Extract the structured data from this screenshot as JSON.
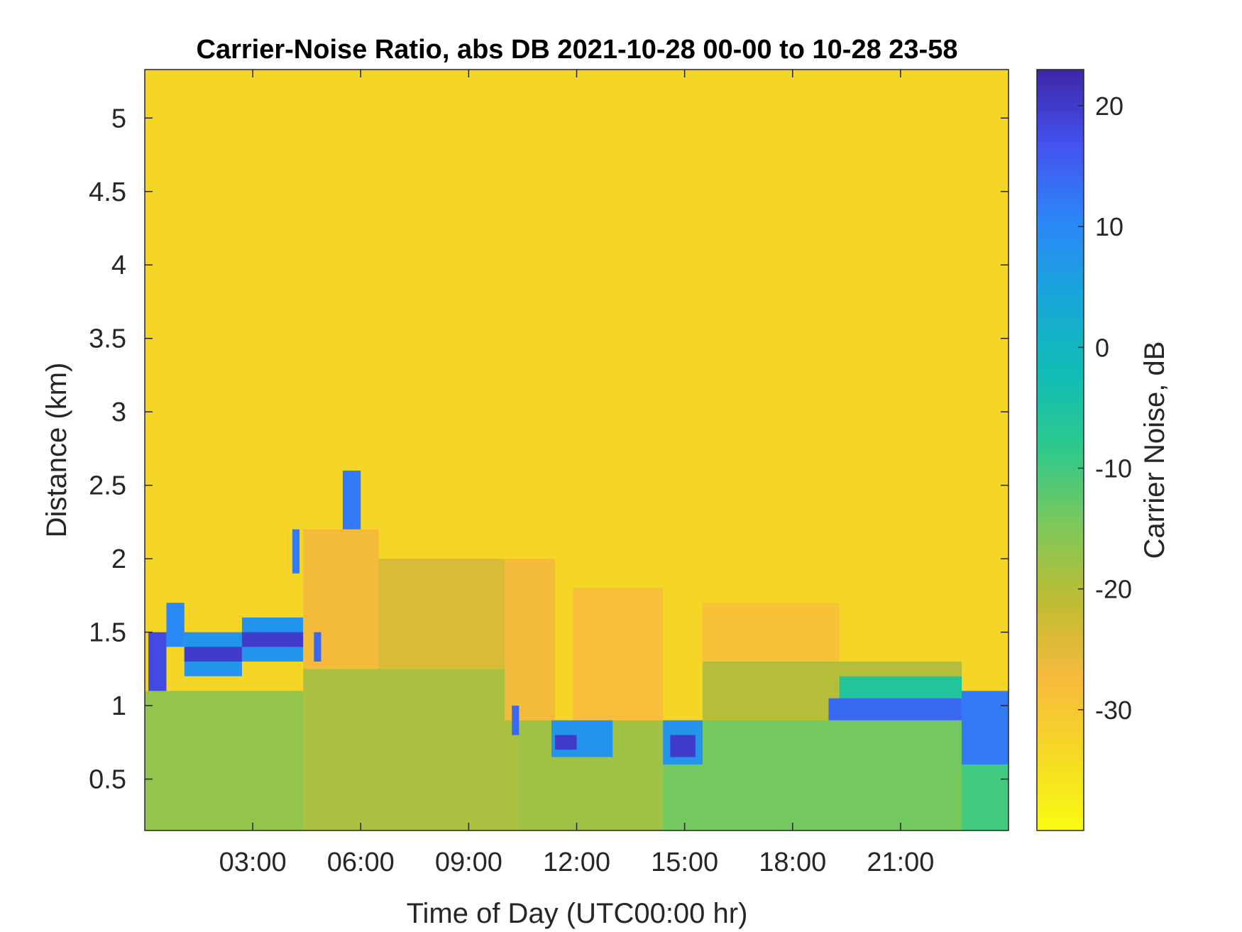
{
  "chart_data": {
    "type": "heatmap",
    "title": "Carrier-Noise Ratio, abs DB 2021-10-28 00-00 to 10-28 23-58",
    "xlabel": "Time of Day (UTC00:00 hr)",
    "ylabel": "Distance (km)",
    "colorbar_label": "Carrier Noise, dB",
    "colormap": "parula-reversed",
    "colormap_stops": [
      "#3e26a8",
      "#4353f0",
      "#2c87f8",
      "#17a7d9",
      "#10bdb5",
      "#2ec98b",
      "#7ec85a",
      "#bfbc33",
      "#f8ba3d",
      "#f5d924",
      "#f9fb14"
    ],
    "xlim": [
      0,
      24
    ],
    "ylim": [
      0.15,
      5.33
    ],
    "clim": [
      -40,
      23
    ],
    "x_ticks": [
      3,
      6,
      9,
      12,
      15,
      18,
      21
    ],
    "x_tick_labels": [
      "03:00",
      "06:00",
      "09:00",
      "12:00",
      "15:00",
      "18:00",
      "21:00"
    ],
    "y_ticks": [
      0.5,
      1,
      1.5,
      2,
      2.5,
      3,
      3.5,
      4,
      4.5,
      5
    ],
    "y_tick_labels": [
      "0.5",
      "1",
      "1.5",
      "2",
      "2.5",
      "3",
      "3.5",
      "4",
      "4.5",
      "5"
    ],
    "c_ticks": [
      -30,
      -20,
      -10,
      0,
      10,
      20
    ],
    "c_tick_labels": [
      "-30",
      "-20",
      "-10",
      "0",
      "10",
      "20"
    ],
    "background_value": -33,
    "layers": [
      {
        "t": [
          0,
          4.4
        ],
        "z": [
          0.15,
          1.1
        ],
        "v": -17
      },
      {
        "t": [
          4.4,
          10.4
        ],
        "z": [
          0.15,
          1.25
        ],
        "v": -19
      },
      {
        "t": [
          10.4,
          14.4
        ],
        "z": [
          0.15,
          0.9
        ],
        "v": -18
      },
      {
        "t": [
          14.4,
          22.7
        ],
        "z": [
          0.15,
          0.9
        ],
        "v": -14
      },
      {
        "t": [
          22.7,
          24
        ],
        "z": [
          0.15,
          1.0
        ],
        "v": -10
      },
      {
        "t": [
          4.4,
          6.5
        ],
        "z": [
          1.25,
          2.2
        ],
        "v": -27
      },
      {
        "t": [
          6.5,
          10.0
        ],
        "z": [
          1.25,
          2.0
        ],
        "v": -24
      },
      {
        "t": [
          10.0,
          11.4
        ],
        "z": [
          0.9,
          2.0
        ],
        "v": -27
      },
      {
        "t": [
          11.9,
          14.4
        ],
        "z": [
          0.9,
          1.8
        ],
        "v": -28
      },
      {
        "t": [
          15.5,
          19.3
        ],
        "z": [
          0.9,
          1.7
        ],
        "v": -29
      },
      {
        "t": [
          15.5,
          22.7
        ],
        "z": [
          0.9,
          1.3
        ],
        "v": -20
      },
      {
        "t": [
          19.3,
          22.7
        ],
        "z": [
          1.0,
          1.2
        ],
        "v": -6
      },
      {
        "t": [
          0.1,
          0.6
        ],
        "z": [
          1.1,
          1.5
        ],
        "v": 18
      },
      {
        "t": [
          0.6,
          1.1
        ],
        "z": [
          1.4,
          1.7
        ],
        "v": 10
      },
      {
        "t": [
          1.1,
          2.7
        ],
        "z": [
          1.2,
          1.5
        ],
        "v": 8
      },
      {
        "t": [
          1.1,
          2.7
        ],
        "z": [
          1.3,
          1.4
        ],
        "v": 20
      },
      {
        "t": [
          2.7,
          4.4
        ],
        "z": [
          1.3,
          1.6
        ],
        "v": 8
      },
      {
        "t": [
          2.7,
          4.4
        ],
        "z": [
          1.4,
          1.5
        ],
        "v": 20
      },
      {
        "t": [
          4.1,
          4.3
        ],
        "z": [
          1.9,
          2.2
        ],
        "v": 12
      },
      {
        "t": [
          4.7,
          4.9
        ],
        "z": [
          1.3,
          1.5
        ],
        "v": 14
      },
      {
        "t": [
          5.5,
          6.0
        ],
        "z": [
          2.2,
          2.6
        ],
        "v": 12
      },
      {
        "t": [
          10.2,
          10.4
        ],
        "z": [
          0.8,
          1.0
        ],
        "v": 14
      },
      {
        "t": [
          11.3,
          13.0
        ],
        "z": [
          0.65,
          0.9
        ],
        "v": 8
      },
      {
        "t": [
          11.4,
          12.0
        ],
        "z": [
          0.7,
          0.8
        ],
        "v": 20
      },
      {
        "t": [
          14.4,
          15.5
        ],
        "z": [
          0.6,
          0.9
        ],
        "v": 8
      },
      {
        "t": [
          14.6,
          15.3
        ],
        "z": [
          0.65,
          0.8
        ],
        "v": 20
      },
      {
        "t": [
          19.0,
          22.7
        ],
        "z": [
          0.9,
          1.05
        ],
        "v": 14
      },
      {
        "t": [
          22.7,
          24
        ],
        "z": [
          0.6,
          1.1
        ],
        "v": 12
      }
    ]
  }
}
